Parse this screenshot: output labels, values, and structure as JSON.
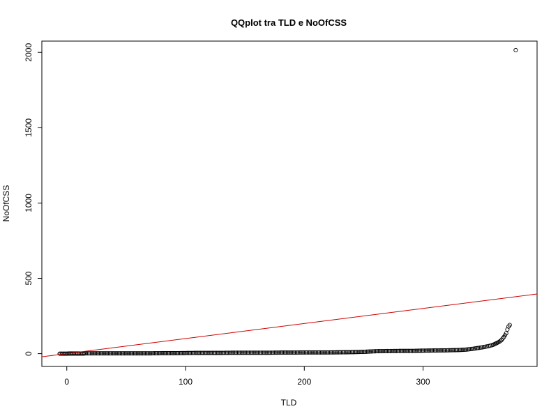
{
  "chart_data": {
    "type": "scatter",
    "title": "QQplot tra TLD e NoOfCSS",
    "xlabel": "TLD",
    "ylabel": "NoOfCSS",
    "xlim": [
      -21,
      396
    ],
    "ylim": [
      -85,
      2075
    ],
    "xticks": [
      0,
      100,
      200,
      300
    ],
    "yticks": [
      0,
      500,
      1000,
      1500,
      2000
    ],
    "grid": false,
    "legend": "none",
    "series": [
      {
        "style": "open-circle",
        "color": "#000000",
        "points": [
          [
            -6,
            0
          ],
          [
            -4,
            0
          ],
          [
            -2,
            0
          ],
          [
            0,
            0
          ],
          [
            2,
            1
          ],
          [
            4,
            1
          ],
          [
            6,
            1
          ],
          [
            8,
            1
          ],
          [
            10,
            1
          ],
          [
            12,
            1
          ],
          [
            14,
            1
          ],
          [
            16,
            2
          ],
          [
            20,
            2
          ],
          [
            30,
            2
          ],
          [
            40,
            2
          ],
          [
            50,
            2
          ],
          [
            60,
            2
          ],
          [
            70,
            2
          ],
          [
            80,
            3
          ],
          [
            90,
            3
          ],
          [
            100,
            4
          ],
          [
            110,
            5
          ],
          [
            120,
            5
          ],
          [
            130,
            5
          ],
          [
            140,
            6
          ],
          [
            150,
            6
          ],
          [
            160,
            6
          ],
          [
            170,
            6
          ],
          [
            180,
            7
          ],
          [
            190,
            7
          ],
          [
            200,
            8
          ],
          [
            210,
            8
          ],
          [
            220,
            8
          ],
          [
            230,
            9
          ],
          [
            240,
            10
          ],
          [
            250,
            12
          ],
          [
            255,
            14
          ],
          [
            260,
            16
          ],
          [
            270,
            17
          ],
          [
            280,
            18
          ],
          [
            290,
            18
          ],
          [
            300,
            20
          ],
          [
            310,
            21
          ],
          [
            320,
            22
          ],
          [
            330,
            24
          ],
          [
            335,
            26
          ],
          [
            340,
            30
          ],
          [
            345,
            36
          ],
          [
            350,
            42
          ],
          [
            355,
            50
          ],
          [
            358,
            56
          ],
          [
            360,
            62
          ],
          [
            362,
            70
          ],
          [
            364,
            78
          ],
          [
            366,
            90
          ],
          [
            368,
            110
          ],
          [
            370,
            135
          ],
          [
            371,
            160
          ],
          [
            372,
            180
          ],
          [
            373,
            190
          ],
          [
            378,
            2015
          ]
        ]
      },
      {
        "style": "line",
        "color": "#cc0000",
        "line": [
          [
            -21,
            -21
          ],
          [
            396,
            396
          ]
        ]
      }
    ]
  }
}
